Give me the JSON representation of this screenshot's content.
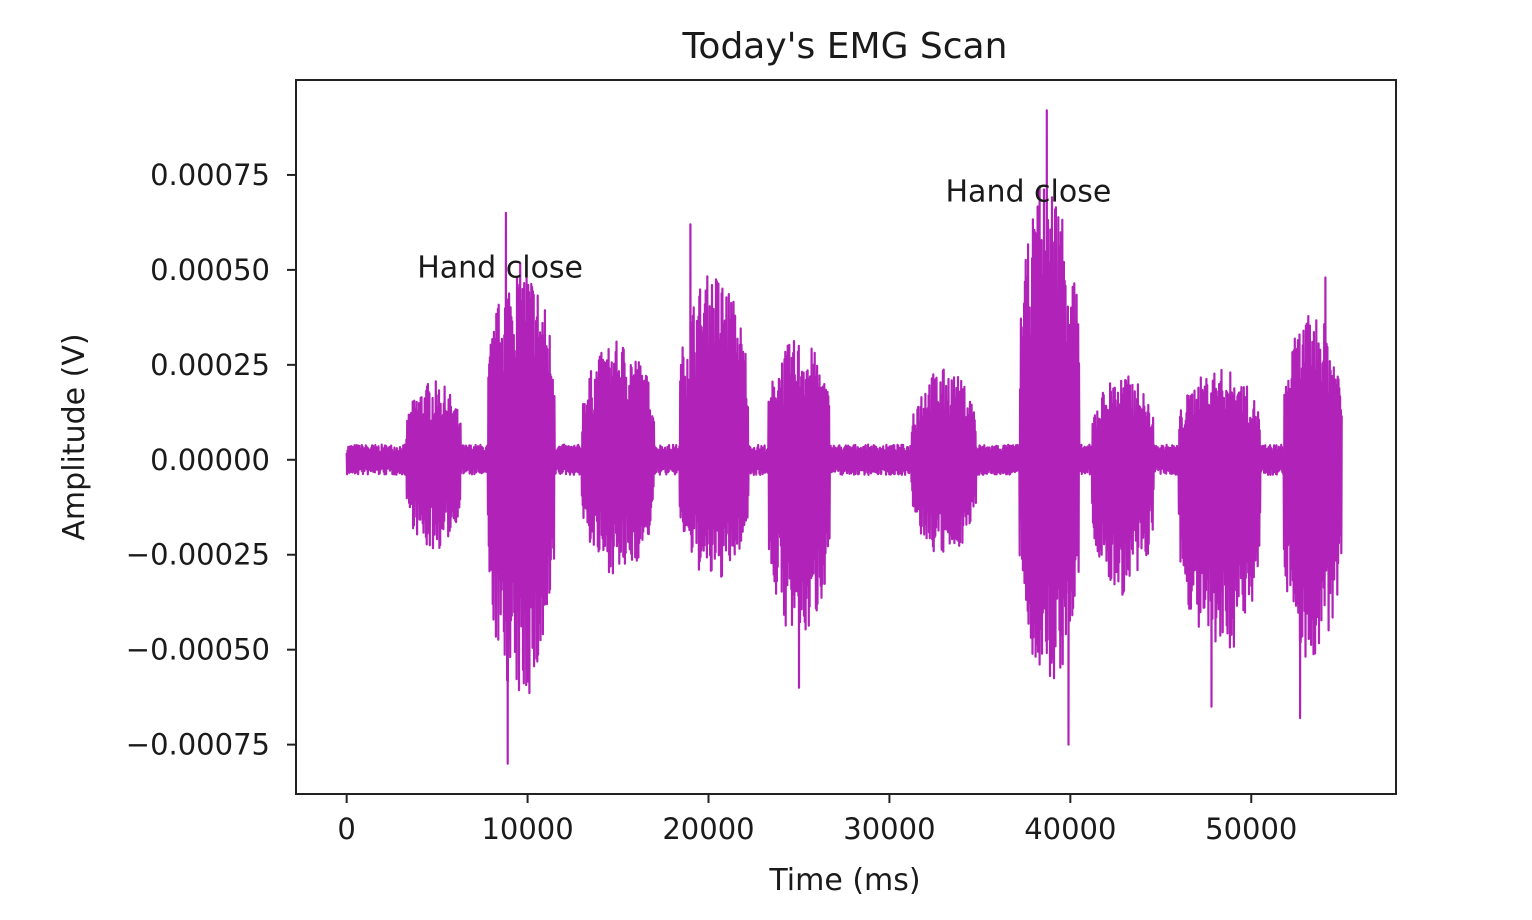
{
  "chart_data": {
    "type": "line",
    "title": "Today's EMG Scan",
    "xlabel": "Time (ms)",
    "ylabel": "Amplitude (V)",
    "xlim": [
      -2800,
      58000
    ],
    "ylim": [
      -0.00088,
      0.001
    ],
    "xticks": [
      0,
      10000,
      20000,
      30000,
      40000,
      50000
    ],
    "xtick_labels": [
      "0",
      "10000",
      "20000",
      "30000",
      "40000",
      "50000"
    ],
    "yticks": [
      0.00075,
      0.0005,
      0.00025,
      0.0,
      -0.00025,
      -0.0005,
      -0.00075
    ],
    "ytick_labels": [
      "0.00075",
      "0.00050",
      "0.00025",
      "0.00000",
      "−0.00025",
      "−0.00050",
      "−0.00075"
    ],
    "grid": false,
    "series": [
      {
        "color": "#b022b8",
        "segments": [
          {
            "x": [
              0,
              3000
            ],
            "lo": -3e-05,
            "hi": 3e-05
          },
          {
            "x": [
              3300,
              6300
            ],
            "lo": -0.0003,
            "hi": 0.00026
          },
          {
            "x": [
              7800,
              11500
            ],
            "lo": -0.0008,
            "hi": 0.00065
          },
          {
            "x": [
              13000,
              17000
            ],
            "lo": -0.00038,
            "hi": 0.00039
          },
          {
            "x": [
              18400,
              22200
            ],
            "lo": -0.0004,
            "hi": 0.00062
          },
          {
            "x": [
              23300,
              26700
            ],
            "lo": -0.0006,
            "hi": 0.0004
          },
          {
            "x": [
              31200,
              34800
            ],
            "lo": -0.00032,
            "hi": 0.0003
          },
          {
            "x": [
              37200,
              40500
            ],
            "lo": -0.00075,
            "hi": 0.00092
          },
          {
            "x": [
              41200,
              44600
            ],
            "lo": -0.00045,
            "hi": 0.00028
          },
          {
            "x": [
              46000,
              50500
            ],
            "lo": -0.00065,
            "hi": 0.0003
          },
          {
            "x": [
              51800,
              55000
            ],
            "lo": -0.00068,
            "hi": 0.00048
          }
        ],
        "peaks": [
          {
            "x": 8800,
            "y": 0.00065
          },
          {
            "x": 8900,
            "y": -0.0008
          },
          {
            "x": 19000,
            "y": 0.00062
          },
          {
            "x": 25000,
            "y": -0.0006
          },
          {
            "x": 38300,
            "y": 0.00072
          },
          {
            "x": 38700,
            "y": 0.00092
          },
          {
            "x": 39900,
            "y": -0.00075
          },
          {
            "x": 47800,
            "y": -0.00065
          },
          {
            "x": 52700,
            "y": -0.00068
          },
          {
            "x": 54100,
            "y": 0.00048
          }
        ]
      }
    ],
    "annotations": [
      {
        "text": "Hand close",
        "x": 3900,
        "y": 0.00048
      },
      {
        "text": "Hand close",
        "x": 33100,
        "y": 0.00068
      }
    ]
  }
}
